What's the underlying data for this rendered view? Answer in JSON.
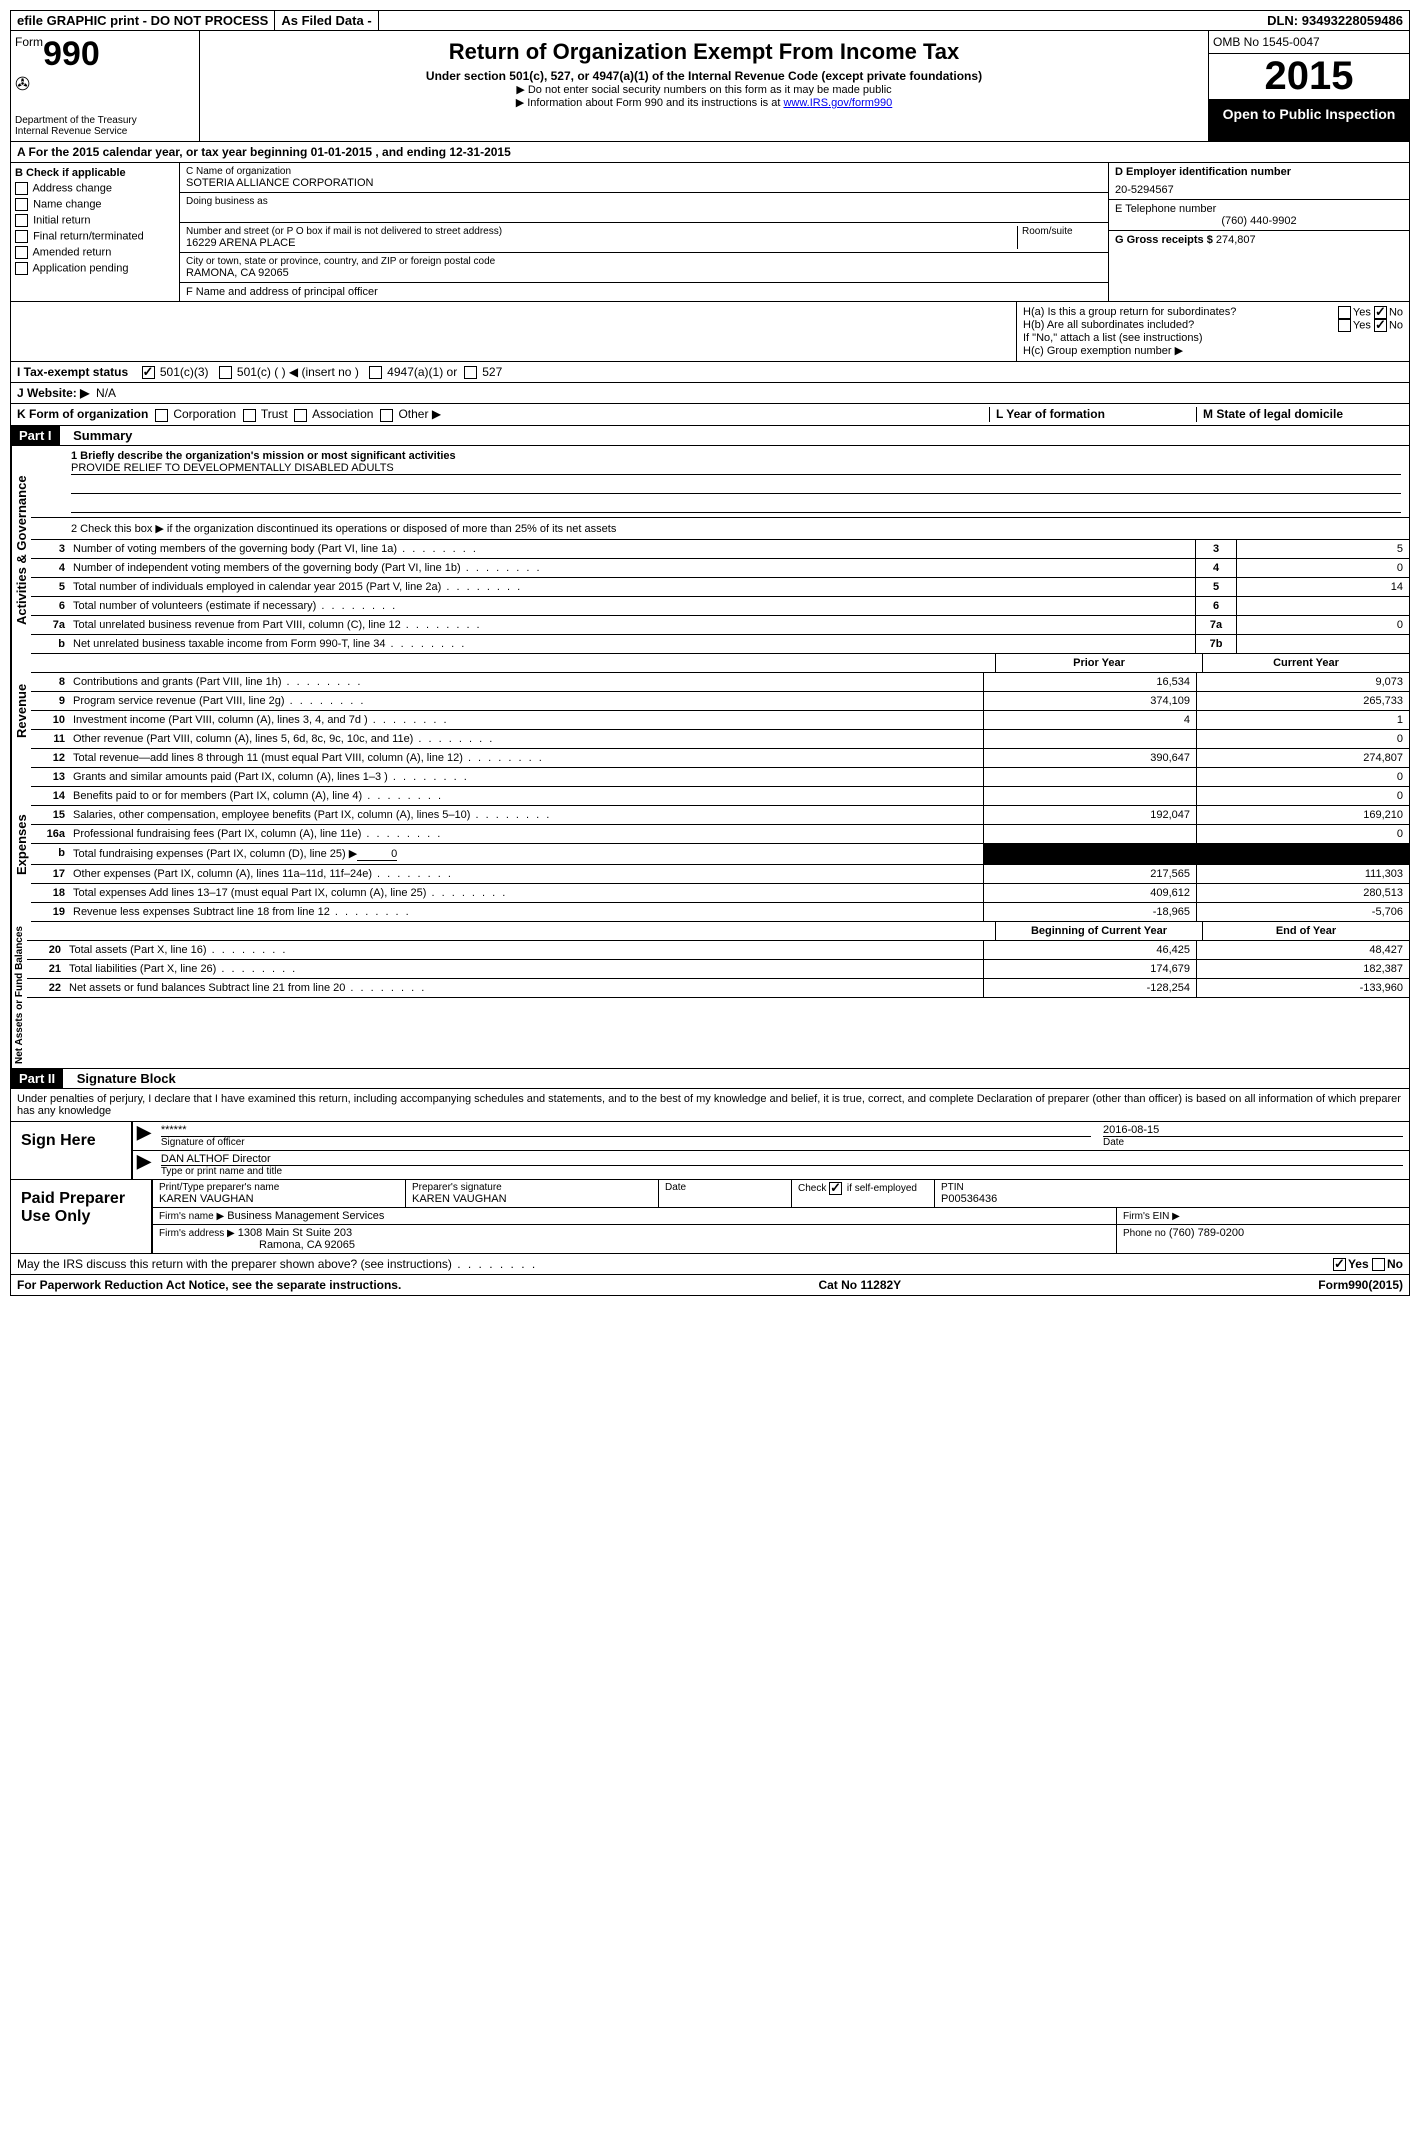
{
  "top": {
    "efile": "efile GRAPHIC print - DO NOT PROCESS",
    "asfiled": "As Filed Data -",
    "dln_label": "DLN:",
    "dln": "93493228059486"
  },
  "header": {
    "form_label": "Form",
    "form_num": "990",
    "dept": "Department of the Treasury",
    "irs": "Internal Revenue Service",
    "title": "Return of Organization Exempt From Income Tax",
    "subtitle": "Under section 501(c), 527, or 4947(a)(1) of the Internal Revenue Code (except private foundations)",
    "note1": "▶ Do not enter social security numbers on this form as it may be made public",
    "note2": "▶ Information about Form 990 and its instructions is at ",
    "link": "www.IRS.gov/form990",
    "omb": "OMB No 1545-0047",
    "year": "2015",
    "inspection": "Open to Public Inspection"
  },
  "rowA": "A   For the 2015 calendar year, or tax year beginning 01-01-2015     , and ending 12-31-2015",
  "blockB": {
    "label": "B  Check if applicable",
    "opts": [
      "Address change",
      "Name change",
      "Initial return",
      "Final return/terminated",
      "Amended return",
      "Application pending"
    ]
  },
  "blockC": {
    "label": "C Name of organization",
    "name": "SOTERIA ALLIANCE CORPORATION",
    "dba_label": "Doing business as",
    "street_label": "Number and street (or P O  box if mail is not delivered to street address)",
    "room_label": "Room/suite",
    "street": "16229 ARENA PLACE",
    "city_label": "City or town, state or province, country, and ZIP or foreign postal code",
    "city": "RAMONA, CA  92065",
    "f_label": "F   Name and address of principal officer"
  },
  "blockD": {
    "label": "D Employer identification number",
    "ein": "20-5294567",
    "e_label": "E Telephone number",
    "phone": "(760) 440-9902",
    "g_label": "G Gross receipts $",
    "gross": "274,807"
  },
  "blockH": {
    "ha": "H(a)  Is this a group return for subordinates?",
    "hb": "H(b)  Are all subordinates included?",
    "hb_note": "If \"No,\" attach a list  (see instructions)",
    "hc": "H(c)   Group exemption number ▶",
    "yes": "Yes",
    "no": "No"
  },
  "rowI": {
    "label": "I   Tax-exempt status",
    "o1": "501(c)(3)",
    "o2": "501(c) (  ) ◀ (insert no )",
    "o3": "4947(a)(1) or",
    "o4": "527"
  },
  "rowJ": {
    "label": "J   Website: ▶",
    "val": "N/A"
  },
  "rowK": {
    "label": "K Form of organization",
    "opts": [
      "Corporation",
      "Trust",
      "Association",
      "Other ▶"
    ],
    "l": "L Year of formation",
    "m": "M State of legal domicile"
  },
  "part1": {
    "label": "Part I",
    "title": "Summary",
    "side1": "Activities & Governance",
    "side2": "Revenue",
    "side3": "Expenses",
    "side4": "Net Assets or Fund Balances",
    "q1": "1 Briefly describe the organization's mission or most significant activities",
    "mission": "PROVIDE RELIEF TO DEVELOPMENTALLY DISABLED ADULTS",
    "q2": "2  Check this box ▶      if the organization discontinued its operations or disposed of more than 25% of its net assets",
    "lines_gov": [
      {
        "n": "3",
        "d": "Number of voting members of the governing body (Part VI, line 1a)",
        "b": "3",
        "v": "5"
      },
      {
        "n": "4",
        "d": "Number of independent voting members of the governing body (Part VI, line 1b)",
        "b": "4",
        "v": "0"
      },
      {
        "n": "5",
        "d": "Total number of individuals employed in calendar year 2015 (Part V, line 2a)",
        "b": "5",
        "v": "14"
      },
      {
        "n": "6",
        "d": "Total number of volunteers (estimate if necessary)",
        "b": "6",
        "v": ""
      },
      {
        "n": "7a",
        "d": "Total unrelated business revenue from Part VIII, column (C), line 12",
        "b": "7a",
        "v": "0"
      },
      {
        "n": "b",
        "d": "Net unrelated business taxable income from Form 990-T, line 34",
        "b": "7b",
        "v": ""
      }
    ],
    "prior": "Prior Year",
    "current": "Current Year",
    "lines_rev": [
      {
        "n": "8",
        "d": "Contributions and grants (Part VIII, line 1h)",
        "p": "16,534",
        "c": "9,073"
      },
      {
        "n": "9",
        "d": "Program service revenue (Part VIII, line 2g)",
        "p": "374,109",
        "c": "265,733"
      },
      {
        "n": "10",
        "d": "Investment income (Part VIII, column (A), lines 3, 4, and 7d )",
        "p": "4",
        "c": "1"
      },
      {
        "n": "11",
        "d": "Other revenue (Part VIII, column (A), lines 5, 6d, 8c, 9c, 10c, and 11e)",
        "p": "",
        "c": "0"
      },
      {
        "n": "12",
        "d": "Total revenue—add lines 8 through 11 (must equal Part VIII, column (A), line 12)",
        "p": "390,647",
        "c": "274,807"
      }
    ],
    "lines_exp": [
      {
        "n": "13",
        "d": "Grants and similar amounts paid (Part IX, column (A), lines 1–3 )",
        "p": "",
        "c": "0"
      },
      {
        "n": "14",
        "d": "Benefits paid to or for members (Part IX, column (A), line 4)",
        "p": "",
        "c": "0"
      },
      {
        "n": "15",
        "d": "Salaries, other compensation, employee benefits (Part IX, column (A), lines 5–10)",
        "p": "192,047",
        "c": "169,210"
      },
      {
        "n": "16a",
        "d": "Professional fundraising fees (Part IX, column (A), line 11e)",
        "p": "",
        "c": "0"
      },
      {
        "n": "b",
        "d": "Total fundraising expenses (Part IX, column (D), line 25) ▶",
        "p": "SHADED",
        "c": "SHADED",
        "fund": "0"
      },
      {
        "n": "17",
        "d": "Other expenses (Part IX, column (A), lines 11a–11d, 11f–24e)",
        "p": "217,565",
        "c": "111,303"
      },
      {
        "n": "18",
        "d": "Total expenses  Add lines 13–17 (must equal Part IX, column (A), line 25)",
        "p": "409,612",
        "c": "280,513"
      },
      {
        "n": "19",
        "d": "Revenue less expenses  Subtract line 18 from line 12",
        "p": "-18,965",
        "c": "-5,706"
      }
    ],
    "begin": "Beginning of Current Year",
    "end": "End of Year",
    "lines_net": [
      {
        "n": "20",
        "d": "Total assets (Part X, line 16)",
        "p": "46,425",
        "c": "48,427"
      },
      {
        "n": "21",
        "d": "Total liabilities (Part X, line 26)",
        "p": "174,679",
        "c": "182,387"
      },
      {
        "n": "22",
        "d": "Net assets or fund balances  Subtract line 21 from line 20",
        "p": "-128,254",
        "c": "-133,960"
      }
    ]
  },
  "part2": {
    "label": "Part II",
    "title": "Signature Block",
    "decl": "Under penalties of perjury, I declare that I have examined this return, including accompanying schedules and statements, and to the best of my knowledge and belief, it is true, correct, and complete  Declaration of preparer (other than officer) is based on all information of which preparer has any knowledge",
    "sign": "Sign Here",
    "stars": "******",
    "sig_officer": "Signature of officer",
    "date_label": "Date",
    "date": "2016-08-15",
    "officer": "DAN ALTHOF  Director",
    "type_label": "Type or print name and title",
    "paid": "Paid Preparer Use Only",
    "prep_name_label": "Print/Type preparer's name",
    "prep_name": "KAREN VAUGHAN",
    "prep_sig_label": "Preparer's signature",
    "prep_sig": "KAREN VAUGHAN",
    "check_label": "Check",
    "self_emp": "if self-employed",
    "ptin_label": "PTIN",
    "ptin": "P00536436",
    "firm_name_label": "Firm's name      ▶",
    "firm_name": "Business Management Services",
    "firm_ein_label": "Firm's EIN ▶",
    "firm_addr_label": "Firm's address ▶",
    "firm_addr": "1308 Main St Suite 203",
    "firm_city": "Ramona, CA  92065",
    "firm_phone_label": "Phone no",
    "firm_phone": "(760) 789-0200",
    "discuss": "May the IRS discuss this return with the preparer shown above? (see instructions)"
  },
  "footer": {
    "paperwork": "For Paperwork Reduction Act Notice, see the separate instructions.",
    "cat": "Cat No  11282Y",
    "form": "Form",
    "formnum": "990",
    "formyear": "(2015)"
  }
}
